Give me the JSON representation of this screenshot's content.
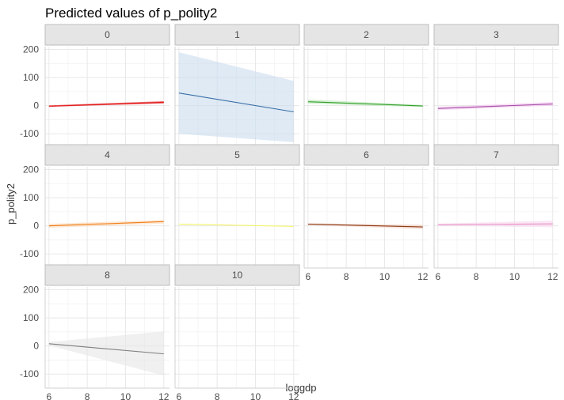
{
  "chart_data": {
    "type": "line",
    "title": "Predicted values of p_polity2",
    "xlabel": "loggdp",
    "ylabel": "p_polity2",
    "xlim": [
      5.8,
      12.3
    ],
    "ylim": [
      -150,
      210
    ],
    "x_ticks": [
      6,
      8,
      10,
      12
    ],
    "y_ticks": [
      -100,
      0,
      100,
      200
    ],
    "grid": true,
    "panels": [
      {
        "label": "0",
        "color": "#e31a1c",
        "x": [
          6,
          12
        ],
        "y": [
          -2,
          12
        ],
        "ci_low": [
          -4,
          8
        ],
        "ci_high": [
          1,
          16
        ]
      },
      {
        "label": "1",
        "color": "#3a6ea5",
        "fill": "#c9dcee",
        "x": [
          6,
          12
        ],
        "y": [
          45,
          -22
        ],
        "ci_low": [
          -100,
          -130
        ],
        "ci_high": [
          190,
          88
        ]
      },
      {
        "label": "2",
        "color": "#33a02c",
        "fill": "#b9e6b4",
        "x": [
          6,
          12
        ],
        "y": [
          14,
          -1
        ],
        "ci_low": [
          7,
          -5
        ],
        "ci_high": [
          22,
          3
        ]
      },
      {
        "label": "3",
        "color": "#a64ca6",
        "fill": "#f3c7ef",
        "x": [
          6,
          12
        ],
        "y": [
          -10,
          6
        ],
        "ci_low": [
          -16,
          0
        ],
        "ci_high": [
          -4,
          13
        ]
      },
      {
        "label": "4",
        "color": "#f17d18",
        "fill": "#fbd9b5",
        "x": [
          6,
          12
        ],
        "y": [
          0,
          15
        ],
        "ci_low": [
          -7,
          8
        ],
        "ci_high": [
          7,
          21
        ]
      },
      {
        "label": "5",
        "color": "#f3f36a",
        "fill": "#fdfddf",
        "x": [
          6,
          12
        ],
        "y": [
          6,
          -2
        ],
        "ci_low": [
          4,
          -4
        ],
        "ci_high": [
          8,
          0
        ]
      },
      {
        "label": "6",
        "color": "#8c3b14",
        "fill": "#f2cfc1",
        "x": [
          6,
          12
        ],
        "y": [
          6,
          -4
        ],
        "ci_low": [
          3,
          -12
        ],
        "ci_high": [
          9,
          4
        ]
      },
      {
        "label": "7",
        "color": "#e78ac3",
        "fill": "#f9d9ee",
        "x": [
          6,
          12
        ],
        "y": [
          4,
          7
        ],
        "ci_low": [
          0,
          -5
        ],
        "ci_high": [
          8,
          19
        ]
      },
      {
        "label": "8",
        "color": "#7f7f7f",
        "fill": "#e6e6e6",
        "x": [
          6,
          12
        ],
        "y": [
          8,
          -28
        ],
        "ci_low": [
          2,
          -105
        ],
        "ci_high": [
          14,
          52
        ]
      },
      {
        "label": "10",
        "color": "#000000",
        "x": [],
        "y": [],
        "ci_low": [],
        "ci_high": []
      }
    ]
  }
}
